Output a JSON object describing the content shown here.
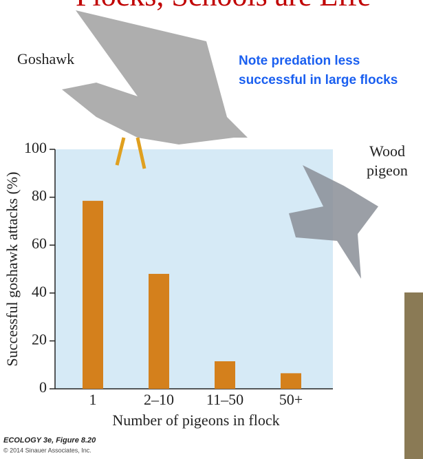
{
  "chart_data": {
    "type": "bar",
    "title": "Flocks, Schools are Effe",
    "note": [
      "Note predation less",
      "successful in large flocks"
    ],
    "bird_labels": {
      "goshawk": "Goshawk",
      "pigeon": [
        "Wood",
        "pigeon"
      ]
    },
    "categories": [
      "1",
      "2–10",
      "11–50",
      "50+"
    ],
    "values": [
      78.5,
      48,
      11.5,
      6.5
    ],
    "color": "#d4801c",
    "x_label": "Number of pigeons in flock",
    "y_label": "Successful goshawk attacks (%)",
    "ylim": [
      0,
      100
    ],
    "yticks": [
      0,
      20,
      40,
      60,
      80,
      100
    ],
    "caption": [
      "ECOLOGY 3e, Figure 8.20",
      "© 2014 Sinauer Associates, Inc."
    ]
  }
}
